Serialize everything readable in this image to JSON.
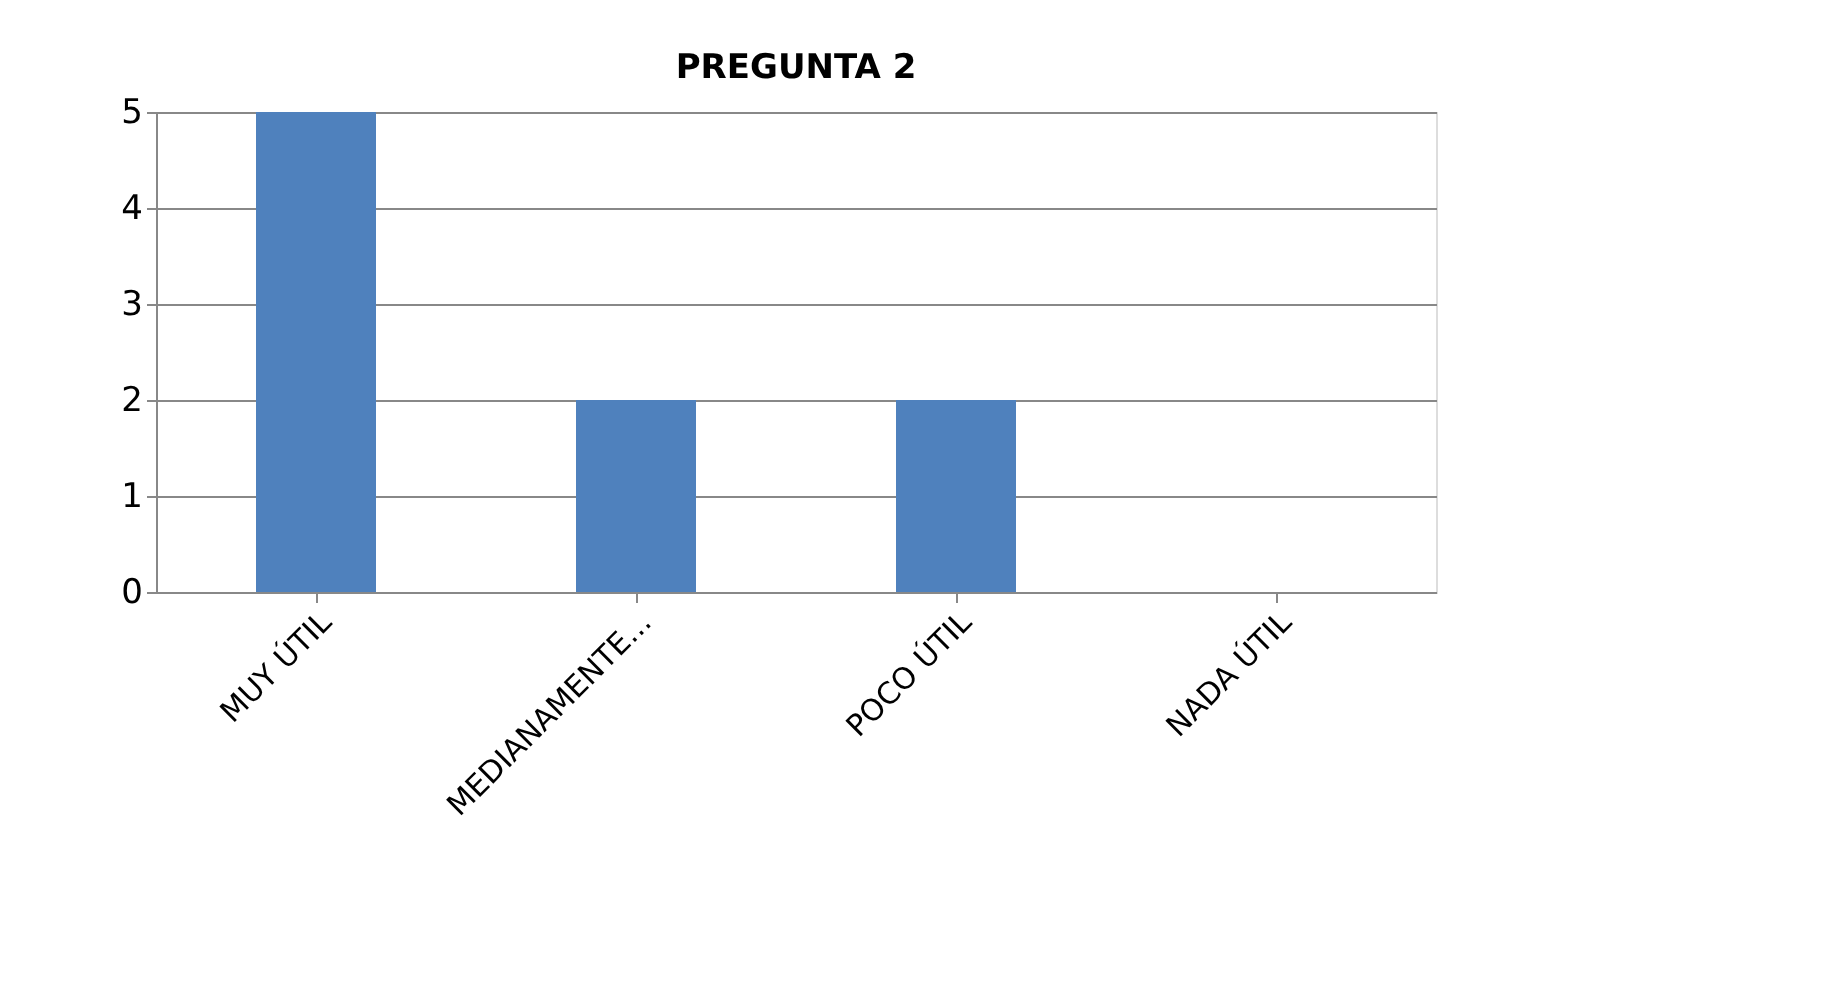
{
  "chart_data": {
    "type": "bar",
    "title": "PREGUNTA 2",
    "categories": [
      "MUY ÚTIL",
      "MEDIANAMENTE...",
      "POCO ÚTIL",
      "NADA ÚTIL"
    ],
    "series": [
      {
        "color": "#4f81bd",
        "values": [
          5,
          2,
          2,
          0
        ]
      }
    ],
    "ylim": [
      0,
      5
    ],
    "yticks": [
      0,
      1,
      2,
      3,
      4,
      5
    ],
    "grid": "y"
  }
}
